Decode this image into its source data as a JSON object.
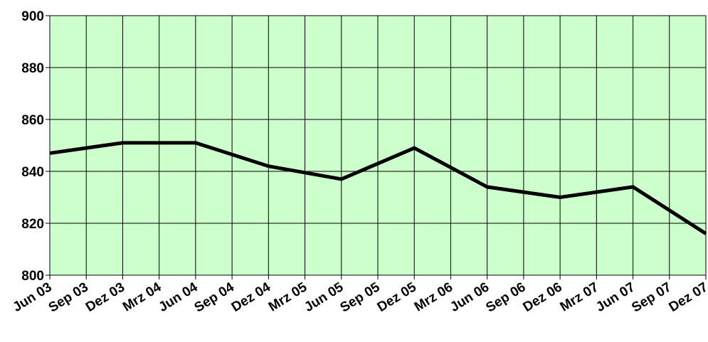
{
  "chart_data": {
    "type": "line",
    "title": "",
    "xlabel": "",
    "ylabel": "",
    "categories": [
      "Jun 03",
      "Sep 03",
      "Dez 03",
      "Mrz 04",
      "Jun 04",
      "Sep 04",
      "Dez 04",
      "Mrz 05",
      "Jun 05",
      "Sep 05",
      "Dez 05",
      "Mrz 06",
      "Jun 06",
      "Sep 06",
      "Dez 06",
      "Mrz 07",
      "Jun 07",
      "Sep 07",
      "Dez 07"
    ],
    "yticks": [
      800,
      820,
      840,
      860,
      880,
      900
    ],
    "ylim": [
      800,
      900
    ],
    "grid": true,
    "legend": "none",
    "series": [
      {
        "points": [
          {
            "x": "Jun 03",
            "y": 847
          },
          {
            "x": "Dez 03",
            "y": 851
          },
          {
            "x": "Jun 04",
            "y": 851
          },
          {
            "x": "Dez 04",
            "y": 842
          },
          {
            "x": "Jun 05",
            "y": 837
          },
          {
            "x": "Dez 05",
            "y": 849
          },
          {
            "x": "Jun 06",
            "y": 834
          },
          {
            "x": "Dez 06",
            "y": 830
          },
          {
            "x": "Jun 07",
            "y": 834
          },
          {
            "x": "Dez 07",
            "y": 816
          }
        ]
      }
    ],
    "colors": {
      "plot_background": "#ccffcc",
      "line": "#000000",
      "grid": "#000000"
    }
  }
}
